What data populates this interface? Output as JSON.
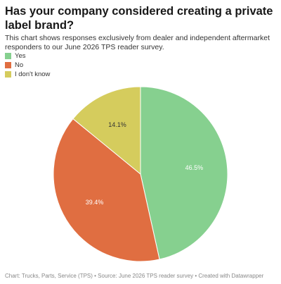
{
  "chart_data": {
    "type": "pie",
    "title": "Has your company considered creating a private label brand?",
    "subtitle": "This chart shows responses exclusively from dealer and independent aftermarket responders to our June 2026 TPS reader survey.",
    "categories": [
      "Yes",
      "No",
      "I don't know"
    ],
    "values": [
      46.5,
      39.4,
      14.1
    ],
    "value_labels": [
      "46.5%",
      "39.4%",
      "14.1%"
    ],
    "colors": [
      "#86d08f",
      "#e06e41",
      "#d5cc5d"
    ],
    "footer": "Chart: Trucks, Parts, Service (TPS) • Source: June 2026 TPS reader survey • Created with Datawrapper"
  }
}
